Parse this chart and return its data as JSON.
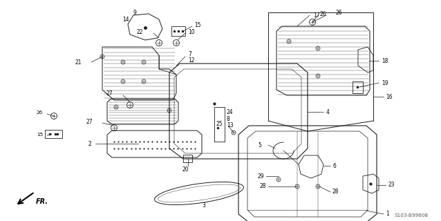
{
  "background_color": "#ffffff",
  "line_color": "#1a1a1a",
  "fig_width": 6.38,
  "fig_height": 3.2,
  "dpi": 100,
  "watermark": "S103-B99608",
  "fr_label": "FR."
}
